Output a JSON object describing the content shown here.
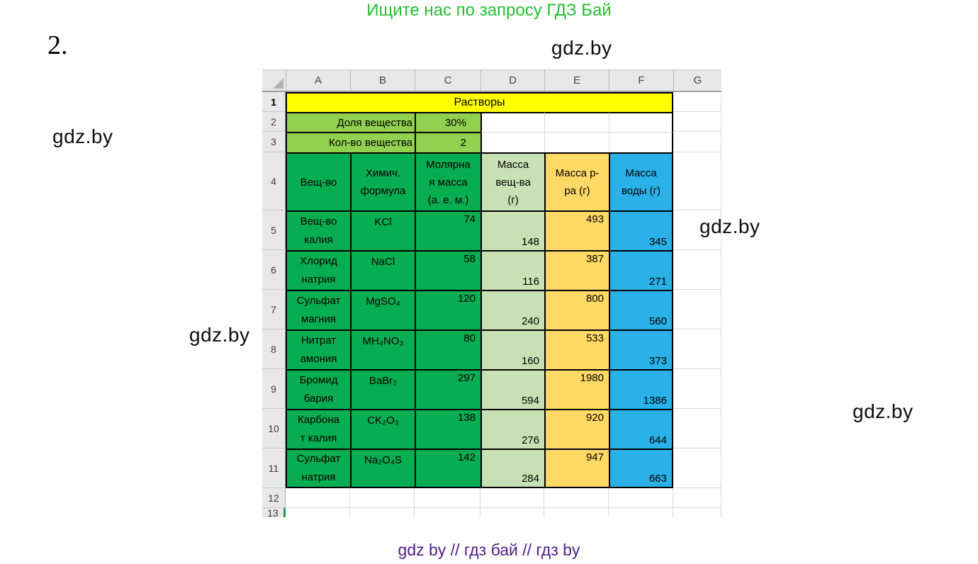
{
  "page": {
    "top_note": "Ищите нас по запросу ГДЗ Бай",
    "problem_number": "2.",
    "watermark": "gdz.by",
    "bottom_note": "gdz by  //  гдз бай  //  гдз by"
  },
  "colors": {
    "title_fill": "#ffff00",
    "param_fill": "#92d050",
    "substance_fill": "#07ad51",
    "mass_substance_fill": "#c7e1b5",
    "mass_solution_fill": "#ffd966",
    "mass_water_fill": "#29b1e8",
    "top_note_green": "#22bf2f",
    "bottom_note_purple": "#4e1d87",
    "active_row_green": "#1f9950"
  },
  "sheet": {
    "columns": [
      "A",
      "B",
      "C",
      "D",
      "E",
      "F",
      "G"
    ],
    "row_numbers": [
      "1",
      "2",
      "3",
      "4",
      "5",
      "6",
      "7",
      "8",
      "9",
      "10",
      "11",
      "12",
      "13"
    ],
    "title": "Растворы",
    "params": [
      {
        "label": "Доля вещества",
        "value": "30%"
      },
      {
        "label": "Кол-во вещества",
        "value": "2"
      }
    ],
    "headers": {
      "substance": "Вещ-во",
      "formula": "Химич.\nформула",
      "molar_mass": "Молярна\nя масса\n(а. е. м.)",
      "mass_substance": "Масса\nвещ-ва\n(г)",
      "mass_solution": "Масса р-\nра (г)",
      "mass_water": "Масса\nводы (г)"
    },
    "rows": [
      {
        "substance": "Вещ-во\nкалия",
        "formula": "KCl",
        "molar_mass": "74",
        "mass_substance": "148",
        "mass_solution": "493",
        "mass_water": "345"
      },
      {
        "substance": "Хлорид\nнатрия",
        "formula": "NaCl",
        "molar_mass": "58",
        "mass_substance": "116",
        "mass_solution": "387",
        "mass_water": "271"
      },
      {
        "substance": "Сульфат\nмагния",
        "formula": "MgSO₄",
        "molar_mass": "120",
        "mass_substance": "240",
        "mass_solution": "800",
        "mass_water": "560"
      },
      {
        "substance": "Нитрат\nамония",
        "formula": "MH₄NO₃",
        "molar_mass": "80",
        "mass_substance": "160",
        "mass_solution": "533",
        "mass_water": "373"
      },
      {
        "substance": "Бромид\nбария",
        "formula": "BaBr₂",
        "molar_mass": "297",
        "mass_substance": "594",
        "mass_solution": "1980",
        "mass_water": "1386"
      },
      {
        "substance": "Карбона\nт калия",
        "formula": "CK₂O₃",
        "molar_mass": "138",
        "mass_substance": "276",
        "mass_solution": "920",
        "mass_water": "644"
      },
      {
        "substance": "Сульфат\nнатрия",
        "formula": "Na₂O₄S",
        "molar_mass": "142",
        "mass_substance": "284",
        "mass_solution": "947",
        "mass_water": "663"
      }
    ]
  }
}
